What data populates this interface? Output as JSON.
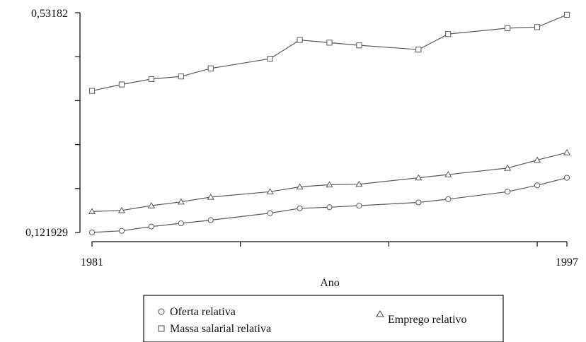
{
  "chart_data": {
    "type": "line",
    "xlabel": "Ano",
    "ylabel": "",
    "xlim": [
      1981,
      1997
    ],
    "ylim": [
      0.121929,
      0.53182
    ],
    "x_tick_labels": [
      "1981",
      "1997"
    ],
    "y_tick_labels": [
      "0,53182",
      "0,121929"
    ],
    "x": [
      1981,
      1982,
      1983,
      1984,
      1985,
      1987,
      1988,
      1989,
      1990,
      1992,
      1993,
      1995,
      1996,
      1997
    ],
    "series": [
      {
        "name": "Oferta relativa",
        "marker": "circle",
        "values": [
          0.122,
          0.125,
          0.133,
          0.139,
          0.145,
          0.158,
          0.167,
          0.169,
          0.172,
          0.178,
          0.184,
          0.198,
          0.21,
          0.224
        ]
      },
      {
        "name": "Massa salarial relativa",
        "marker": "square",
        "values": [
          0.386,
          0.398,
          0.408,
          0.413,
          0.428,
          0.446,
          0.481,
          0.476,
          0.471,
          0.463,
          0.492,
          0.503,
          0.505,
          0.528
        ]
      },
      {
        "name": "Emprego relativo",
        "marker": "triangle",
        "values": [
          0.161,
          0.163,
          0.172,
          0.179,
          0.188,
          0.198,
          0.207,
          0.211,
          0.212,
          0.224,
          0.23,
          0.242,
          0.257,
          0.271
        ]
      }
    ],
    "legend_position": "bottom-center",
    "grid": false,
    "colors": {
      "line": "#5a5a5a",
      "axis": "#111111",
      "background": "#ffffff"
    }
  }
}
